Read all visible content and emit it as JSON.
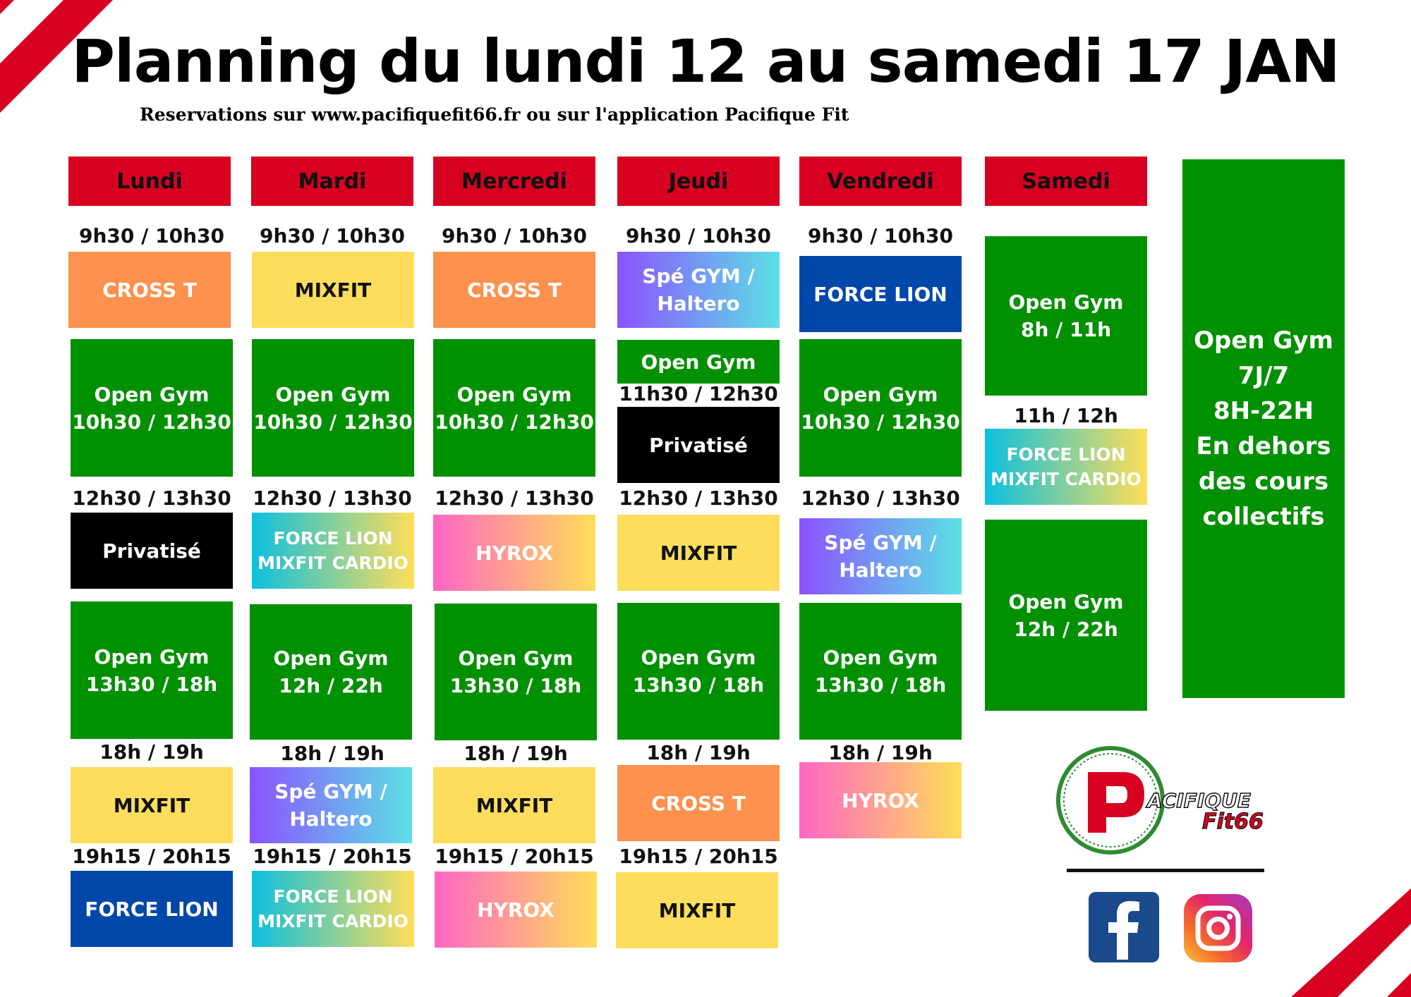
{
  "title": "Planning du lundi 12 au samedi 17 JAN",
  "subtitle": "Reservations sur www.pacifiquefit66.fr ou sur l'application Pacifique Fit",
  "days": [
    "Lundi",
    "Mardi",
    "Mercredi",
    "Jeudi",
    "Vendredi",
    "Samedi"
  ],
  "lundi": {
    "t1": "9h30 / 10h30",
    "c1": "CROSS T",
    "og_name": "Open Gym",
    "og1": "10h30 / 12h30",
    "t2": "12h30 / 13h30",
    "c2": "Privatisé",
    "og2": "13h30 / 18h",
    "t3": "18h / 19h",
    "c3": "MIXFIT",
    "t4": "19h15 / 20h15",
    "c4": "FORCE LION"
  },
  "mardi": {
    "t1": "9h30 / 10h30",
    "c1": "MIXFIT",
    "og_name": "Open Gym",
    "og1": "10h30 / 12h30",
    "t2": "12h30 / 13h30",
    "c2a": "FORCE LION",
    "c2b": "MIXFIT CARDIO",
    "og2": "12h / 22h",
    "t3": "18h / 19h",
    "c3a": "Spé GYM /",
    "c3b": "Haltero",
    "t4": "19h15 / 20h15",
    "c4a": "FORCE LION",
    "c4b": "MIXFIT CARDIO"
  },
  "mercredi": {
    "t1": "9h30 / 10h30",
    "c1": "CROSS T",
    "og_name": "Open Gym",
    "og1": "10h30 / 12h30",
    "t2": "12h30 / 13h30",
    "c2": "HYROX",
    "og2": "13h30 / 18h",
    "t3": "18h / 19h",
    "c3": "MIXFIT",
    "t4": "19h15 / 20h15",
    "c4": "HYROX"
  },
  "jeudi": {
    "t1": "9h30 / 10h30",
    "c1a": "Spé GYM /",
    "c1b": "Haltero",
    "og_name": "Open Gym",
    "tp": "11h30 / 12h30",
    "cp": "Privatisé",
    "t2": "12h30 / 13h30",
    "c2": "MIXFIT",
    "og2": "13h30 / 18h",
    "t3": "18h / 19h",
    "c3": "CROSS T",
    "t4": "19h15 / 20h15",
    "c4": "MIXFIT"
  },
  "vendredi": {
    "t1": "9h30 / 10h30",
    "c1": "FORCE LION",
    "og_name": "Open Gym",
    "og1": "10h30 / 12h30",
    "t2": "12h30 / 13h30",
    "c2a": "Spé GYM /",
    "c2b": "Haltero",
    "og2": "13h30 / 18h",
    "t3": "18h / 19h",
    "c3": "HYROX"
  },
  "samedi": {
    "og_name": "Open Gym",
    "og1": "8h / 11h",
    "t2": "11h / 12h",
    "c2a": "FORCE LION",
    "c2b": "MIXFIT CARDIO",
    "og2": "12h / 22h"
  },
  "open_gym_panel": [
    "Open Gym",
    "7J/7",
    "8H-22H",
    "En dehors",
    "des cours",
    "collectifs"
  ],
  "logo": {
    "line1": "ACIFIQUE",
    "line2": "Fit66"
  },
  "icons": [
    "facebook-icon",
    "instagram-icon"
  ]
}
